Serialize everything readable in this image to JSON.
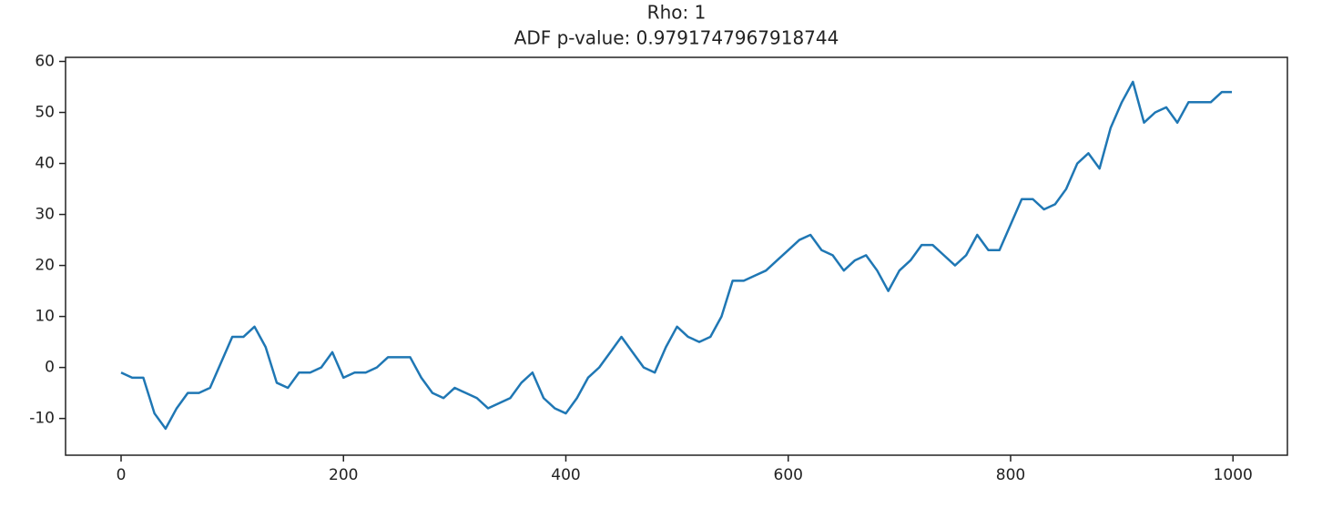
{
  "chart_data": {
    "type": "line",
    "title": [
      "Rho: 1",
      "ADF p-value: 0.9791747967918744"
    ],
    "x": [
      0,
      10,
      20,
      30,
      40,
      50,
      60,
      70,
      80,
      90,
      100,
      110,
      120,
      130,
      140,
      150,
      160,
      170,
      180,
      190,
      200,
      210,
      220,
      230,
      240,
      250,
      260,
      270,
      280,
      290,
      300,
      310,
      320,
      330,
      340,
      350,
      360,
      370,
      380,
      390,
      400,
      410,
      420,
      430,
      440,
      450,
      460,
      470,
      480,
      490,
      500,
      510,
      520,
      530,
      540,
      550,
      560,
      570,
      580,
      590,
      600,
      610,
      620,
      630,
      640,
      650,
      660,
      670,
      680,
      690,
      700,
      710,
      720,
      730,
      740,
      750,
      760,
      770,
      780,
      790,
      800,
      810,
      820,
      830,
      840,
      850,
      860,
      870,
      880,
      890,
      900,
      910,
      920,
      930,
      940,
      950,
      960,
      970,
      980,
      990,
      999
    ],
    "series": [
      {
        "color": "#1f77b4",
        "values": [
          -1,
          -2,
          -2,
          -9,
          -12,
          -8,
          -5,
          -5,
          -4,
          1,
          6,
          6,
          8,
          4,
          -3,
          -4,
          -1,
          -1,
          0,
          3,
          -2,
          -1,
          -1,
          0,
          2,
          2,
          2,
          -2,
          -5,
          -6,
          -4,
          -5,
          -6,
          -8,
          -7,
          -6,
          -3,
          -1,
          -6,
          -8,
          -9,
          -6,
          -2,
          0,
          3,
          6,
          3,
          0,
          -1,
          4,
          8,
          6,
          5,
          6,
          10,
          17,
          17,
          18,
          19,
          21,
          23,
          25,
          26,
          23,
          22,
          19,
          21,
          22,
          19,
          15,
          19,
          21,
          24,
          24,
          22,
          20,
          22,
          26,
          23,
          23,
          28,
          33,
          33,
          31,
          32,
          35,
          40,
          42,
          39,
          47,
          52,
          56,
          48,
          50,
          51,
          48,
          52,
          52,
          52,
          54,
          54
        ]
      }
    ],
    "xlim": [
      -49.95,
      1048.95
    ],
    "ylim": [
      -17.2,
      60.8
    ],
    "xticks": [
      0,
      200,
      400,
      600,
      800,
      1000
    ],
    "yticks": [
      -10,
      0,
      10,
      20,
      30,
      40,
      50,
      60
    ],
    "grid": false
  }
}
